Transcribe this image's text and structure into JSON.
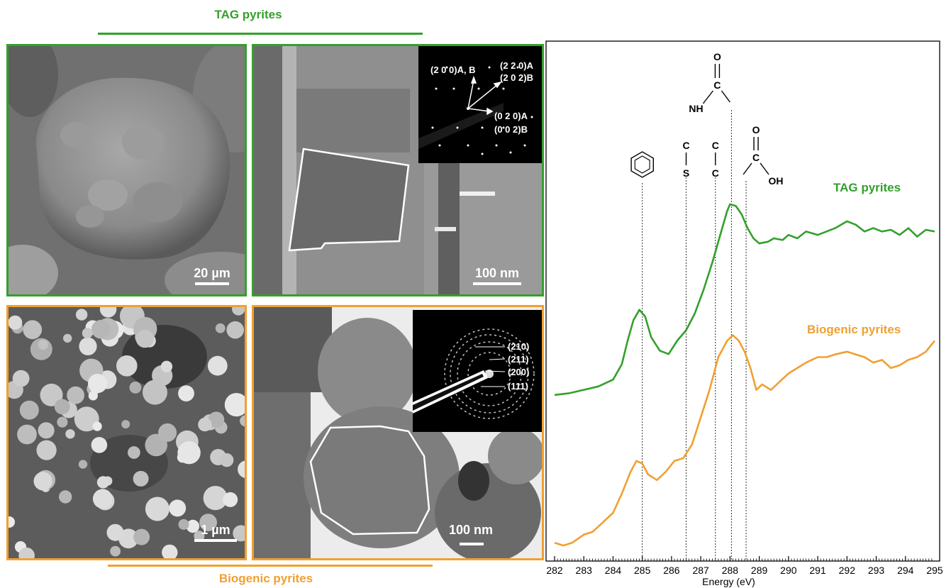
{
  "colors": {
    "tag": "#33a02c",
    "bio": "#f0a030"
  },
  "tag_group": {
    "title": "TAG pyrites"
  },
  "bio_group": {
    "title": "Biogenic pyrites"
  },
  "panels": {
    "tag_sem": {
      "scale": "20 µm"
    },
    "tag_tem": {
      "scale": "100 nm",
      "diffraction": [
        "(2 0 0)A, B",
        "(2 2 0)A",
        "(2 0 2)B",
        "(0 2 0)A",
        "(0 0 2)B"
      ]
    },
    "bio_sem": {
      "scale": "1 µm"
    },
    "bio_tem": {
      "scale": "100 nm",
      "diffraction": [
        "(210)",
        "(211)",
        "(200)",
        "(111)"
      ]
    }
  },
  "chart_data": {
    "type": "line",
    "title": "",
    "xlabel": "Energy (eV)",
    "ylabel": "",
    "xlim": [
      282,
      295
    ],
    "xticks": [
      "282",
      "283",
      "284",
      "285",
      "286",
      "287",
      "288",
      "289",
      "290",
      "291",
      "292",
      "293",
      "294",
      "295"
    ],
    "yaxis_ticks": false,
    "grid": false,
    "series": [
      {
        "name": "TAG pyrites",
        "x": [
          282.0,
          282.5,
          283.0,
          283.5,
          284.0,
          284.3,
          284.5,
          284.7,
          284.9,
          285.1,
          285.3,
          285.6,
          285.9,
          286.2,
          286.5,
          286.8,
          287.1,
          287.4,
          287.7,
          287.9,
          288.0,
          288.2,
          288.4,
          288.6,
          288.8,
          289.0,
          289.3,
          289.5,
          289.8,
          290.0,
          290.3,
          290.6,
          291.0,
          291.3,
          291.6,
          292.0,
          292.3,
          292.6,
          292.9,
          293.2,
          293.5,
          293.8,
          294.1,
          294.4,
          294.7,
          295.0
        ],
        "y": [
          0.18,
          0.19,
          0.21,
          0.23,
          0.27,
          0.36,
          0.5,
          0.62,
          0.68,
          0.64,
          0.52,
          0.44,
          0.42,
          0.5,
          0.56,
          0.66,
          0.8,
          0.96,
          1.14,
          1.26,
          1.3,
          1.29,
          1.24,
          1.16,
          1.1,
          1.07,
          1.08,
          1.1,
          1.09,
          1.12,
          1.1,
          1.14,
          1.12,
          1.14,
          1.16,
          1.2,
          1.18,
          1.14,
          1.16,
          1.14,
          1.15,
          1.12,
          1.16,
          1.11,
          1.15,
          1.14
        ]
      },
      {
        "name": "Biogenic pyrites",
        "x": [
          282.0,
          282.3,
          282.6,
          283.0,
          283.3,
          283.6,
          284.0,
          284.3,
          284.6,
          284.8,
          285.0,
          285.2,
          285.5,
          285.8,
          286.1,
          286.4,
          286.7,
          287.0,
          287.3,
          287.6,
          287.9,
          288.1,
          288.3,
          288.5,
          288.7,
          288.9,
          289.1,
          289.4,
          289.7,
          290.0,
          290.3,
          290.6,
          291.0,
          291.3,
          291.6,
          292.0,
          292.3,
          292.6,
          292.9,
          293.2,
          293.5,
          293.8,
          294.1,
          294.4,
          294.7,
          295.0
        ],
        "y": [
          0.02,
          0.01,
          0.02,
          0.05,
          0.06,
          0.09,
          0.13,
          0.2,
          0.28,
          0.32,
          0.31,
          0.27,
          0.25,
          0.28,
          0.32,
          0.33,
          0.38,
          0.48,
          0.58,
          0.7,
          0.76,
          0.78,
          0.76,
          0.72,
          0.66,
          0.58,
          0.6,
          0.58,
          0.61,
          0.64,
          0.66,
          0.68,
          0.7,
          0.7,
          0.71,
          0.72,
          0.71,
          0.7,
          0.68,
          0.69,
          0.66,
          0.67,
          0.69,
          0.7,
          0.72,
          0.76
        ]
      }
    ],
    "series_labels": [
      "TAG pyrites",
      "Biogenic pyrites"
    ],
    "reference_lines": [
      {
        "x": 285.0,
        "label": "aromatic C=C"
      },
      {
        "x": 286.5,
        "label": "C–S"
      },
      {
        "x": 287.5,
        "label": "C–C"
      },
      {
        "x": 288.05,
        "label": "amide"
      },
      {
        "x": 288.55,
        "label": "carboxyl"
      }
    ],
    "annotations": {
      "cs": [
        "C",
        "S"
      ],
      "cc": [
        "C",
        "C"
      ],
      "amide": [
        "O",
        "C",
        "NH"
      ],
      "carboxyl": [
        "O",
        "C",
        "OH"
      ]
    }
  }
}
